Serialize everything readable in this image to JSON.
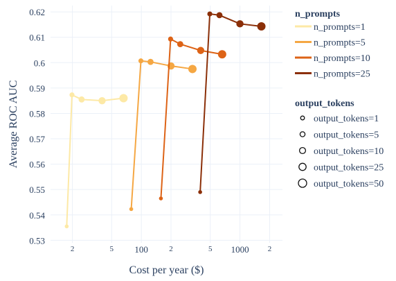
{
  "chart_data": {
    "type": "scatter",
    "title": "",
    "xlabel": "Cost per year ($)",
    "ylabel": "Average ROC AUC",
    "x_scale": "log",
    "xlim": [
      12,
      2700
    ],
    "ylim": [
      0.529,
      0.6225
    ],
    "grid": true,
    "x_tick_values": [
      20,
      50,
      100,
      200,
      500,
      1000,
      2000
    ],
    "x_tick_labels": [
      "2",
      "5",
      "100",
      "2",
      "5",
      "1000",
      "2"
    ],
    "y_tick_values": [
      0.53,
      0.54,
      0.55,
      0.56,
      0.57,
      0.58,
      0.59,
      0.6,
      0.61,
      0.62
    ],
    "y_tick_labels": [
      "0.53",
      "0.54",
      "0.55",
      "0.56",
      "0.57",
      "0.58",
      "0.59",
      "0.6",
      "0.61",
      "0.62"
    ],
    "legend_placement": "right",
    "series": [
      {
        "name": "n_prompts=1",
        "color": "#fde9a6",
        "points": [
          [
            17.5,
            0.5355
          ],
          [
            19.8,
            0.5873
          ],
          [
            24.8,
            0.5855
          ],
          [
            40,
            0.585
          ],
          [
            66,
            0.586
          ]
        ]
      },
      {
        "name": "n_prompts=5",
        "color": "#f5a743",
        "points": [
          [
            79,
            0.5423
          ],
          [
            99,
            0.6007
          ],
          [
            124,
            0.6003
          ],
          [
            200,
            0.5987
          ],
          [
            330,
            0.5975
          ]
        ]
      },
      {
        "name": "n_prompts=10",
        "color": "#dd6316",
        "points": [
          [
            158,
            0.5465
          ],
          [
            198,
            0.6093
          ],
          [
            248,
            0.6073
          ],
          [
            400,
            0.6048
          ],
          [
            660,
            0.6033
          ]
        ]
      },
      {
        "name": "n_prompts=25",
        "color": "#8b2f08",
        "points": [
          [
            395,
            0.549
          ],
          [
            495,
            0.6192
          ],
          [
            620,
            0.6187
          ],
          [
            1000,
            0.6153
          ],
          [
            1650,
            0.6143
          ]
        ]
      }
    ],
    "legend_groups": [
      {
        "title": "n_prompts",
        "items": [
          "n_prompts=1",
          "n_prompts=5",
          "n_prompts=10",
          "n_prompts=25"
        ]
      },
      {
        "title": "output_tokens",
        "items": [
          "output_tokens=1",
          "output_tokens=5",
          "output_tokens=10",
          "output_tokens=25",
          "output_tokens=50"
        ]
      }
    ],
    "output_tokens_per_point": [
      1,
      5,
      10,
      25,
      50
    ]
  }
}
